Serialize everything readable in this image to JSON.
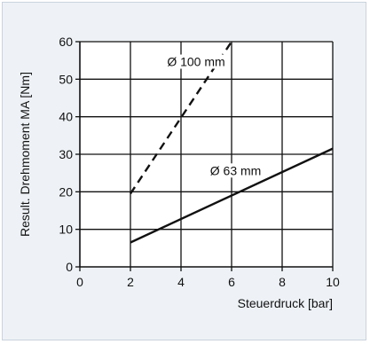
{
  "chart_data": {
    "type": "line",
    "xlabel": "Steuerdruck [bar]",
    "ylabel": "Result. Drehmoment MA [Nm]",
    "xlim": [
      0,
      10
    ],
    "ylim": [
      0,
      60
    ],
    "x_ticks": [
      "0",
      "2",
      "4",
      "6",
      "8",
      "10"
    ],
    "y_ticks": [
      "0",
      "10",
      "20",
      "30",
      "40",
      "50",
      "60"
    ],
    "grid": true,
    "series": [
      {
        "name": "Ø 100 mm",
        "style": "dashed",
        "points": [
          [
            2,
            19.5
          ],
          [
            6,
            60
          ]
        ]
      },
      {
        "name": "Ø 63 mm",
        "style": "solid",
        "points": [
          [
            2,
            6.5
          ],
          [
            10,
            31.5
          ]
        ]
      }
    ]
  },
  "colors": {
    "panel_background": "#eef2f6",
    "panel_border": "#c9d3dd",
    "plot_background": "#ffffff",
    "lines": "#111111"
  }
}
